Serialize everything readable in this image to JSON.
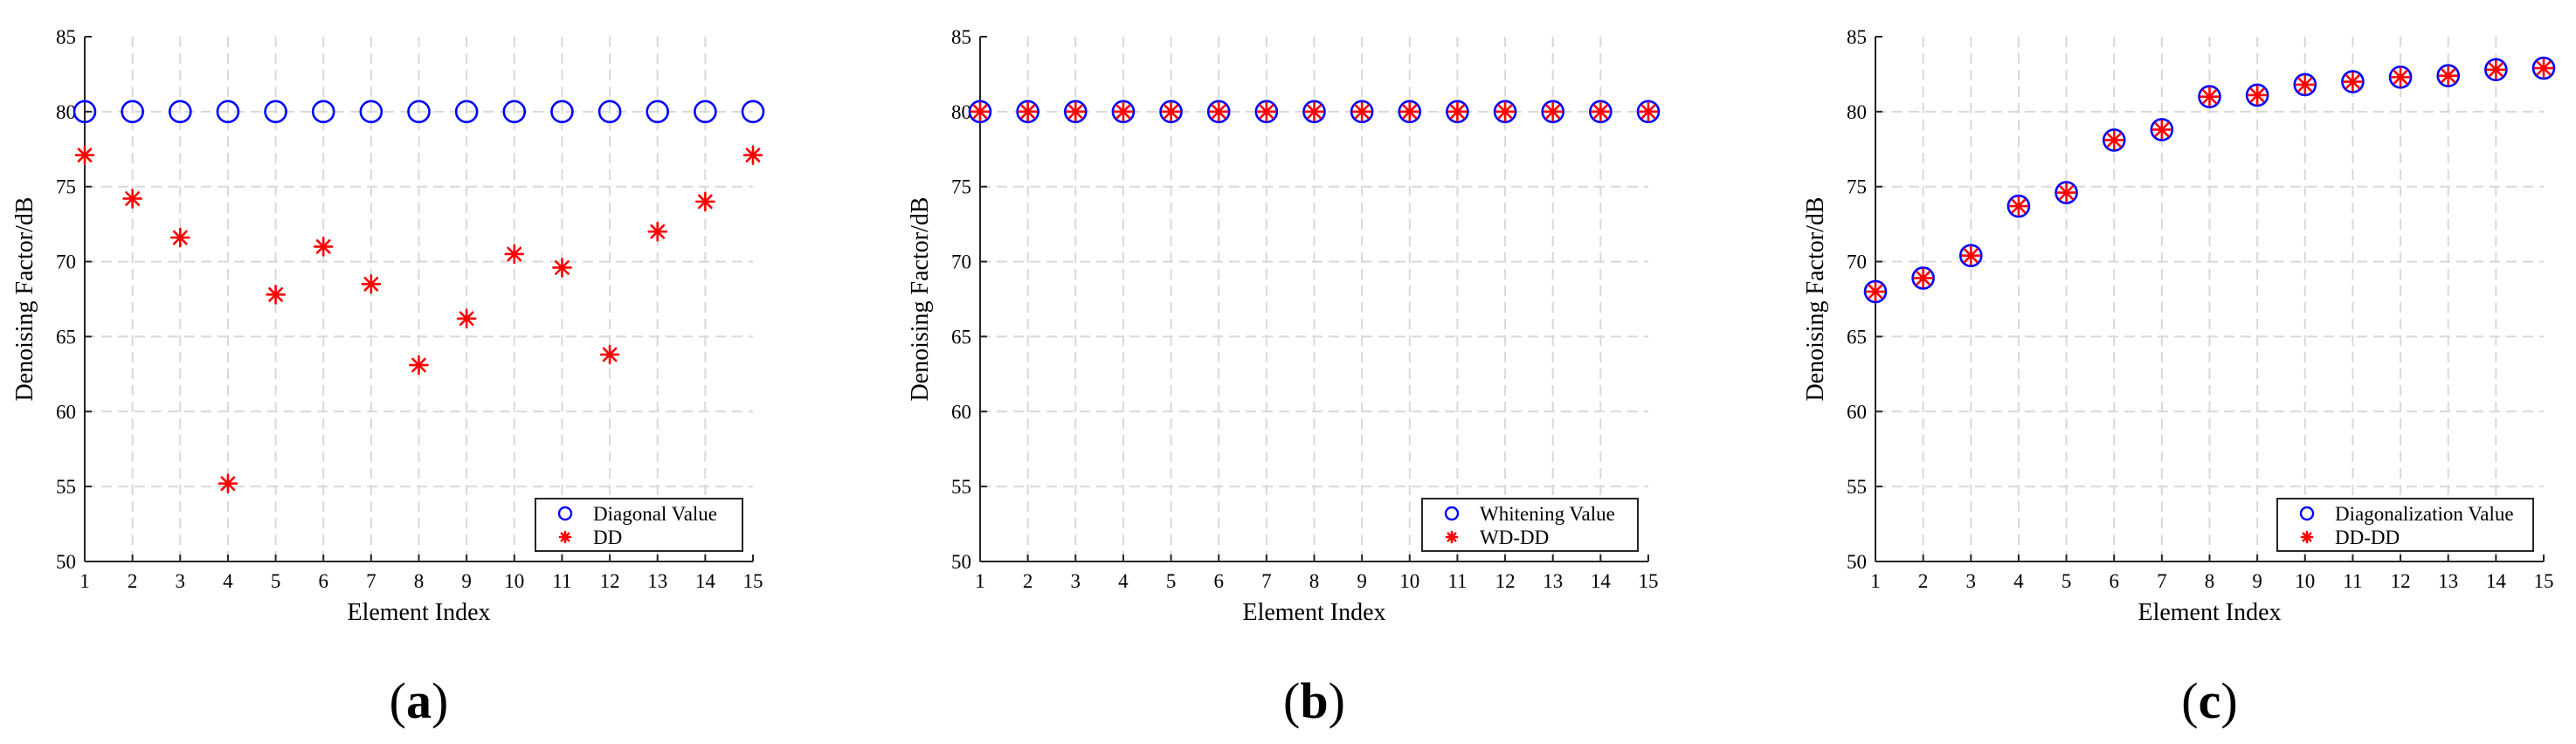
{
  "chart_data": [
    {
      "type": "scatter",
      "panel_label": "(a)",
      "panel_letter": "a",
      "xlabel": "Element Index",
      "ylabel": "Denoising Factor/dB",
      "xlim": [
        1,
        15
      ],
      "ylim": [
        50,
        85
      ],
      "xticks": [
        1,
        2,
        3,
        4,
        5,
        6,
        7,
        8,
        9,
        10,
        11,
        12,
        13,
        14,
        15
      ],
      "yticks": [
        50,
        55,
        60,
        65,
        70,
        75,
        80,
        85
      ],
      "grid": true,
      "legend_position": "bottom-right",
      "series": [
        {
          "name": "Diagonal Value",
          "marker": "circle",
          "color": "#0000ff",
          "x": [
            1,
            2,
            3,
            4,
            5,
            6,
            7,
            8,
            9,
            10,
            11,
            12,
            13,
            14,
            15
          ],
          "y": [
            80,
            80,
            80,
            80,
            80,
            80,
            80,
            80,
            80,
            80,
            80,
            80,
            80,
            80,
            80
          ]
        },
        {
          "name": "DD",
          "marker": "asterisk",
          "color": "#ff0000",
          "x": [
            1,
            2,
            3,
            4,
            5,
            6,
            7,
            8,
            9,
            10,
            11,
            12,
            13,
            14,
            15
          ],
          "y": [
            77.1,
            74.2,
            71.6,
            55.2,
            67.8,
            71.0,
            68.5,
            63.1,
            66.2,
            70.5,
            69.6,
            63.8,
            72.0,
            74.0,
            77.1
          ]
        }
      ]
    },
    {
      "type": "scatter",
      "panel_label": "(b)",
      "panel_letter": "b",
      "xlabel": "Element Index",
      "ylabel": "Denoising Factor/dB",
      "xlim": [
        1,
        15
      ],
      "ylim": [
        50,
        85
      ],
      "xticks": [
        1,
        2,
        3,
        4,
        5,
        6,
        7,
        8,
        9,
        10,
        11,
        12,
        13,
        14,
        15
      ],
      "yticks": [
        50,
        55,
        60,
        65,
        70,
        75,
        80,
        85
      ],
      "grid": true,
      "legend_position": "bottom-right",
      "series": [
        {
          "name": "Whitening Value",
          "marker": "circle",
          "color": "#0000ff",
          "x": [
            1,
            2,
            3,
            4,
            5,
            6,
            7,
            8,
            9,
            10,
            11,
            12,
            13,
            14,
            15
          ],
          "y": [
            80,
            80,
            80,
            80,
            80,
            80,
            80,
            80,
            80,
            80,
            80,
            80,
            80,
            80,
            80
          ]
        },
        {
          "name": "WD-DD",
          "marker": "asterisk",
          "color": "#ff0000",
          "x": [
            1,
            2,
            3,
            4,
            5,
            6,
            7,
            8,
            9,
            10,
            11,
            12,
            13,
            14,
            15
          ],
          "y": [
            80,
            80,
            80,
            80,
            80,
            80,
            80,
            80,
            80,
            80,
            80,
            80,
            80,
            80,
            80
          ]
        }
      ]
    },
    {
      "type": "scatter",
      "panel_label": "(c)",
      "panel_letter": "c",
      "xlabel": "Element Index",
      "ylabel": "Denoising Factor/dB",
      "xlim": [
        1,
        15
      ],
      "ylim": [
        50,
        85
      ],
      "xticks": [
        1,
        2,
        3,
        4,
        5,
        6,
        7,
        8,
        9,
        10,
        11,
        12,
        13,
        14,
        15
      ],
      "yticks": [
        50,
        55,
        60,
        65,
        70,
        75,
        80,
        85
      ],
      "grid": true,
      "legend_position": "bottom-right",
      "series": [
        {
          "name": "Diagonalization Value",
          "marker": "circle",
          "color": "#0000ff",
          "x": [
            1,
            2,
            3,
            4,
            5,
            6,
            7,
            8,
            9,
            10,
            11,
            12,
            13,
            14,
            15
          ],
          "y": [
            68.0,
            68.9,
            70.4,
            73.7,
            74.6,
            78.1,
            78.8,
            81.0,
            81.1,
            81.8,
            82.0,
            82.3,
            82.4,
            82.8,
            82.9
          ]
        },
        {
          "name": "DD-DD",
          "marker": "asterisk",
          "color": "#ff0000",
          "x": [
            1,
            2,
            3,
            4,
            5,
            6,
            7,
            8,
            9,
            10,
            11,
            12,
            13,
            14,
            15
          ],
          "y": [
            68.0,
            68.9,
            70.4,
            73.7,
            74.6,
            78.1,
            78.8,
            81.0,
            81.1,
            81.8,
            82.0,
            82.3,
            82.4,
            82.8,
            82.9
          ]
        }
      ]
    }
  ]
}
